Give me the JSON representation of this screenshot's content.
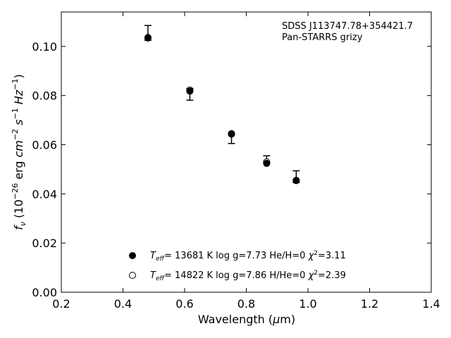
{
  "chart_data": {
    "type": "scatter",
    "xlabel": "Wavelength (μm)",
    "ylabel": "f_ν (10^-26 erg cm^-2 s^-1 Hz^-1)",
    "xlim": [
      0.2,
      1.4
    ],
    "ylim": [
      0.0,
      0.114
    ],
    "x_ticks": [
      0.2,
      0.4,
      0.6,
      0.8,
      1.0,
      1.2,
      1.4
    ],
    "y_ticks": [
      0.0,
      0.02,
      0.04,
      0.06,
      0.08,
      0.1
    ],
    "x_tick_labels": [
      "0.2",
      "0.4",
      "0.6",
      "0.8",
      "1.0",
      "1.2",
      "1.4"
    ],
    "y_tick_labels": [
      "0.00",
      "0.02",
      "0.04",
      "0.06",
      "0.08",
      "0.10"
    ],
    "annotation": [
      "SDSS J113747.78+354421.7",
      "Pan-STARRS grizy"
    ],
    "grid": false,
    "legend_position": "bottom-center",
    "observed": {
      "x": [
        0.481,
        0.617,
        0.752,
        0.866,
        0.962
      ],
      "y": [
        0.1055,
        0.0805,
        0.0625,
        0.054,
        0.047
      ],
      "yerr": [
        0.003,
        0.0024,
        0.002,
        0.0015,
        0.0024
      ]
    },
    "series": [
      {
        "name": "T_eff= 13681 K  log g=7.73  He/H=0  χ²=3.11",
        "marker": "filled",
        "x": [
          0.481,
          0.617,
          0.752,
          0.866,
          0.962
        ],
        "y": [
          0.1036,
          0.0818,
          0.0643,
          0.0524,
          0.0454
        ]
      },
      {
        "name": "T_eff= 14822 K  log g=7.86  H/He=0  χ²=2.39",
        "marker": "open",
        "x": [
          0.481,
          0.617,
          0.752,
          0.866,
          0.962
        ],
        "y": [
          0.1034,
          0.0822,
          0.0645,
          0.053,
          0.0455
        ]
      }
    ]
  }
}
